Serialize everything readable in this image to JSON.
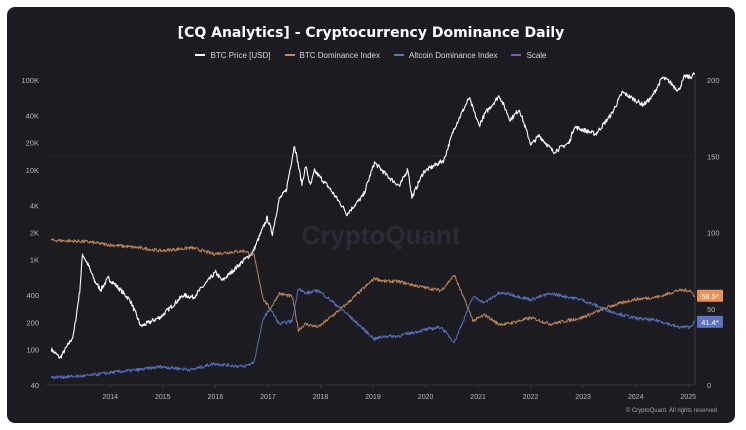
{
  "title": "[CQ Analytics] - Cryptocurrency Dominance Daily",
  "watermark": "CryptoQuant",
  "footer": "© CryptoQuant. All rights reserved",
  "colors": {
    "background": "#1b1b21",
    "btc_price": "#ffffff",
    "btc_dominance": "#c38a5a",
    "altcoin_dominance": "#5b73c0",
    "scale": "#8e4ed1"
  },
  "chart_data": {
    "type": "line",
    "title": "[CQ Analytics] - Cryptocurrency Dominance Daily",
    "legend_position": "top",
    "grid": false,
    "x_ticks": [
      "2014",
      "2015",
      "2016",
      "2017",
      "2018",
      "2019",
      "2020",
      "2021",
      "2022",
      "2023",
      "2024",
      "2025"
    ],
    "y_left": {
      "scale": "log",
      "ticks": [
        "40",
        "100",
        "200",
        "400",
        "1K",
        "2K",
        "4K",
        "10K",
        "20K",
        "40K",
        "100K"
      ],
      "tick_values": [
        40,
        100,
        200,
        400,
        1000,
        2000,
        4000,
        10000,
        20000,
        40000,
        100000
      ]
    },
    "y_right": {
      "scale": "linear",
      "ticks": [
        "0",
        "50",
        "100",
        "150",
        "200"
      ],
      "tick_values": [
        0,
        50,
        100,
        150,
        200
      ],
      "range": [
        0,
        200
      ]
    },
    "legend": [
      "BTC Price [USD]",
      "BTC Dominance Index",
      "Altcoin Dominance Index",
      "Scale"
    ],
    "series": [
      {
        "name": "BTC Price [USD]",
        "axis": "left",
        "color": "#ffffff",
        "x": [
          "2013-05-01",
          "2013-07-01",
          "2013-10-01",
          "2013-11-15",
          "2013-12-04",
          "2014-01-15",
          "2014-02-25",
          "2014-04-10",
          "2014-06-01",
          "2014-08-01",
          "2014-11-01",
          "2015-01-14",
          "2015-06-01",
          "2015-11-04",
          "2016-01-15",
          "2016-06-16",
          "2016-08-01",
          "2017-01-04",
          "2017-03-01",
          "2017-06-10",
          "2017-07-16",
          "2017-09-01",
          "2017-10-20",
          "2017-12-17",
          "2018-02-06",
          "2018-03-05",
          "2018-04-06",
          "2018-05-05",
          "2018-08-15",
          "2018-11-25",
          "2018-12-15",
          "2019-04-10",
          "2019-06-26",
          "2019-09-30",
          "2019-12-18",
          "2020-02-13",
          "2020-03-12",
          "2020-06-01",
          "2020-10-20",
          "2020-12-31",
          "2021-04-14",
          "2021-06-22",
          "2021-08-01",
          "2021-11-10",
          "2022-01-24",
          "2022-03-29",
          "2022-06-18",
          "2022-08-14",
          "2022-11-21",
          "2023-03-10",
          "2023-04-14",
          "2023-09-11",
          "2023-12-31",
          "2024-03-14",
          "2024-08-05",
          "2024-10-01",
          "2024-12-17",
          "2025-02-01",
          "2025-04-08",
          "2025-05-22",
          "2025-07-01",
          "2025-07-30"
        ],
        "values": [
          100,
          80,
          140,
          450,
          1150,
          850,
          580,
          460,
          620,
          500,
          350,
          180,
          230,
          400,
          380,
          720,
          580,
          1000,
          1200,
          2900,
          1950,
          4700,
          5900,
          19000,
          6900,
          11000,
          6600,
          9700,
          6300,
          3700,
          3200,
          5200,
          12000,
          8300,
          6600,
          10200,
          4900,
          9500,
          12800,
          29000,
          63000,
          31000,
          42000,
          67000,
          36000,
          47000,
          19000,
          24000,
          15800,
          20000,
          30000,
          25000,
          42000,
          73000,
          53000,
          63000,
          106000,
          97000,
          76000,
          110000,
          107000,
          119000
        ]
      },
      {
        "name": "BTC Dominance Index",
        "axis": "right",
        "color": "#c38a5a",
        "x": [
          "2013-05-01",
          "2014-01-01",
          "2014-06-01",
          "2015-01-01",
          "2015-06-01",
          "2016-01-01",
          "2016-06-01",
          "2017-01-01",
          "2017-03-10",
          "2017-05-15",
          "2017-07-01",
          "2017-09-01",
          "2017-12-01",
          "2018-01-13",
          "2018-03-01",
          "2018-06-01",
          "2018-12-01",
          "2019-06-26",
          "2019-09-01",
          "2019-12-01",
          "2020-06-01",
          "2020-10-01",
          "2021-01-01",
          "2021-05-12",
          "2021-08-01",
          "2021-11-01",
          "2022-01-01",
          "2022-06-18",
          "2022-11-01",
          "2023-06-01",
          "2024-01-01",
          "2024-06-01",
          "2024-12-01",
          "2025-04-01",
          "2025-06-27",
          "2025-07-30"
        ],
        "values": [
          95,
          94,
          92,
          90,
          88,
          90,
          86,
          88,
          85,
          56,
          50,
          60,
          58,
          36,
          40,
          38,
          52,
          70,
          68,
          68,
          64,
          62,
          72,
          42,
          46,
          40,
          40,
          44,
          40,
          44,
          52,
          56,
          58,
          62,
          62,
          58.5
        ]
      },
      {
        "name": "Altcoin Dominance Index",
        "axis": "right",
        "color": "#5b73c0",
        "x": [
          "2013-05-01",
          "2014-01-01",
          "2014-06-01",
          "2015-01-01",
          "2015-06-01",
          "2016-01-01",
          "2016-06-01",
          "2017-01-01",
          "2017-03-10",
          "2017-05-15",
          "2017-07-01",
          "2017-09-01",
          "2017-12-01",
          "2018-01-13",
          "2018-03-01",
          "2018-06-01",
          "2018-12-01",
          "2019-06-26",
          "2019-09-01",
          "2019-12-01",
          "2020-06-01",
          "2020-10-01",
          "2021-01-01",
          "2021-05-12",
          "2021-08-01",
          "2021-11-01",
          "2022-01-01",
          "2022-06-18",
          "2022-11-01",
          "2023-06-01",
          "2024-01-01",
          "2024-06-01",
          "2024-12-01",
          "2025-04-01",
          "2025-06-27",
          "2025-07-30"
        ],
        "values": [
          5,
          6,
          8,
          10,
          12,
          10,
          14,
          12,
          15,
          44,
          50,
          40,
          42,
          64,
          60,
          62,
          48,
          30,
          32,
          32,
          36,
          38,
          28,
          58,
          54,
          60,
          60,
          56,
          60,
          56,
          48,
          44,
          42,
          38,
          38,
          41.4
        ]
      }
    ],
    "end_labels": [
      {
        "series": "BTC Dominance Index",
        "text": "58.5*",
        "value": 58.5,
        "color": "#e8935a"
      },
      {
        "series": "Altcoin Dominance Index",
        "text": "41.4*",
        "value": 41.4,
        "color": "#5b73c0"
      }
    ]
  }
}
